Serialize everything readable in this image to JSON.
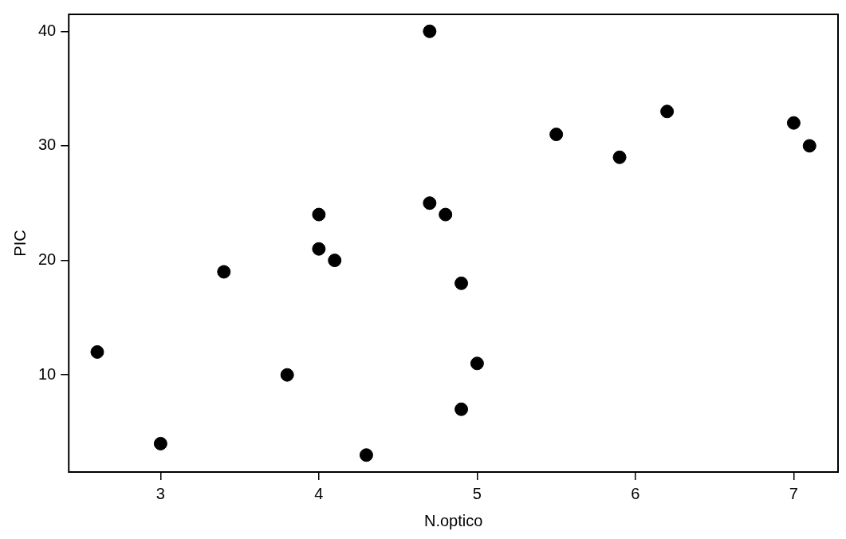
{
  "chart_data": {
    "type": "scatter",
    "xlabel": "N.optico",
    "ylabel": "PIC",
    "x": [
      2.6,
      3,
      3.4,
      3.8,
      4,
      4,
      4.1,
      4.3,
      4.7,
      4.7,
      4.8,
      4.9,
      4.9,
      5,
      5.5,
      5.9,
      6.2,
      7,
      7.1
    ],
    "series": [
      {
        "color": "#000000",
        "values": [
          12,
          4,
          19,
          10,
          24,
          21,
          20,
          3,
          40,
          25,
          24,
          18,
          7,
          11,
          31,
          29,
          33,
          32,
          30
        ]
      }
    ],
    "xlim": [
      2.42,
      7.28
    ],
    "xticks": [
      3,
      4,
      5,
      6,
      7
    ],
    "ylim": [
      1.52,
      41.48
    ],
    "yticks": [
      10,
      20,
      30,
      40
    ],
    "grid": false,
    "legend": false,
    "marker": "circle"
  }
}
